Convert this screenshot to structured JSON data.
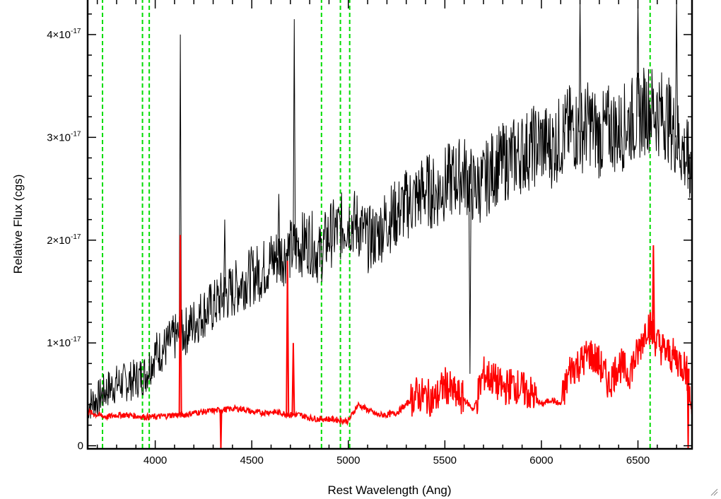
{
  "chart_data": {
    "type": "line",
    "xlabel": "Rest Wavelength (Ang)",
    "ylabel": "Relative Flux (cgs)",
    "xlim": [
      3650,
      6780
    ],
    "ylim": [
      -3e-19,
      4.35e-17
    ],
    "x_ticks": [
      {
        "value": 4000,
        "label": "4000"
      },
      {
        "value": 4500,
        "label": "4500"
      },
      {
        "value": 5000,
        "label": "5000"
      },
      {
        "value": 5500,
        "label": "5500"
      },
      {
        "value": 6000,
        "label": "6000"
      },
      {
        "value": 6500,
        "label": "6500"
      }
    ],
    "x_minor_step": 100,
    "y_ticks": [
      {
        "value": 0,
        "mantissa": "0",
        "exponent": ""
      },
      {
        "value": 1e-17,
        "mantissa": "1×10",
        "exponent": "-17"
      },
      {
        "value": 2e-17,
        "mantissa": "2×10",
        "exponent": "-17"
      },
      {
        "value": 3e-17,
        "mantissa": "3×10",
        "exponent": "-17"
      },
      {
        "value": 4e-17,
        "mantissa": "4×10",
        "exponent": "-17"
      }
    ],
    "y_minor_step": 2e-18,
    "grid": false,
    "vertical_lines": [
      3727,
      3934,
      3969,
      4861,
      4959,
      5007,
      6563
    ],
    "vertical_line_color": "#00dd00",
    "series": [
      {
        "color": "#000000",
        "x": [
          3650,
          3700,
          3750,
          3800,
          3850,
          3900,
          3950,
          4000,
          4050,
          4100,
          4150,
          4200,
          4250,
          4300,
          4350,
          4400,
          4450,
          4500,
          4550,
          4600,
          4650,
          4700,
          4750,
          4800,
          4850,
          4900,
          4950,
          5000,
          5050,
          5100,
          5150,
          5200,
          5250,
          5300,
          5350,
          5400,
          5450,
          5500,
          5550,
          5600,
          5650,
          5700,
          5750,
          5800,
          5850,
          5900,
          5950,
          6000,
          6050,
          6100,
          6150,
          6200,
          6250,
          6300,
          6350,
          6400,
          6450,
          6500,
          6550,
          6600,
          6650,
          6700,
          6750,
          6780
        ],
        "y": [
          4e-18,
          4.5e-18,
          5.5e-18,
          6e-18,
          6.2e-18,
          6.5e-18,
          7e-18,
          9e-18,
          9.5e-18,
          1.05e-17,
          1.1e-17,
          1.2e-17,
          1.3e-17,
          1.35e-17,
          1.45e-17,
          1.5e-17,
          1.6e-17,
          1.65e-17,
          1.7e-17,
          1.8e-17,
          1.85e-17,
          1.9e-17,
          1.95e-17,
          2e-17,
          1.85e-17,
          2.05e-17,
          2.1e-17,
          2.2e-17,
          2.15e-17,
          2e-17,
          2.05e-17,
          2.2e-17,
          2.25e-17,
          2.35e-17,
          2.4e-17,
          2.5e-17,
          2.45e-17,
          2.55e-17,
          2.6e-17,
          2.65e-17,
          2.5e-17,
          2.55e-17,
          2.7e-17,
          2.75e-17,
          2.8e-17,
          2.85e-17,
          2.9e-17,
          2.95e-17,
          2.9e-17,
          3e-17,
          3.1e-17,
          3.05e-17,
          3.15e-17,
          3e-17,
          3.1e-17,
          3.05e-17,
          3.15e-17,
          3.2e-17,
          3.3e-17,
          3.25e-17,
          3.2e-17,
          3e-17,
          2.8e-17,
          2.7e-17
        ],
        "spikes": [
          {
            "x": 4130,
            "y": 4e-17
          },
          {
            "x": 4720,
            "y": 4.15e-17
          },
          {
            "x": 4360,
            "y": 2.2e-17
          },
          {
            "x": 4640,
            "y": 2.45e-17
          },
          {
            "x": 5630,
            "y": 7e-18
          },
          {
            "x": 6200,
            "y": 4.35e-17
          },
          {
            "x": 6500,
            "y": 4.35e-17
          },
          {
            "x": 6700,
            "y": 4.35e-17
          }
        ]
      },
      {
        "color": "#ff0000",
        "x": [
          3650,
          3700,
          3750,
          3800,
          3850,
          3900,
          3950,
          4000,
          4050,
          4100,
          4150,
          4200,
          4250,
          4300,
          4350,
          4400,
          4450,
          4500,
          4550,
          4600,
          4650,
          4700,
          4750,
          4800,
          4850,
          4900,
          4950,
          5000,
          5050,
          5100,
          5150,
          5200,
          5250,
          5300,
          5350,
          5400,
          5450,
          5500,
          5550,
          5600,
          5650,
          5700,
          5750,
          5800,
          5850,
          5900,
          5950,
          6000,
          6050,
          6100,
          6150,
          6200,
          6250,
          6300,
          6350,
          6400,
          6450,
          6500,
          6550,
          6600,
          6650,
          6700,
          6750,
          6780
        ],
        "y": [
          3.3e-18,
          3e-18,
          2.8e-18,
          3e-18,
          3e-18,
          2.9e-18,
          2.8e-18,
          2.8e-18,
          2.9e-18,
          3e-18,
          3e-18,
          3.2e-18,
          3.3e-18,
          3.4e-18,
          3.5e-18,
          3.6e-18,
          3.6e-18,
          3.3e-18,
          3.2e-18,
          3.3e-18,
          3.2e-18,
          3e-18,
          3e-18,
          2.7e-18,
          2.6e-18,
          2.6e-18,
          2.5e-18,
          2.4e-18,
          4e-18,
          3.5e-18,
          3e-18,
          3e-18,
          3.2e-18,
          4e-18,
          5e-18,
          4.8e-18,
          4.5e-18,
          6e-18,
          5e-18,
          4.5e-18,
          3.5e-18,
          7e-18,
          6.5e-18,
          5.5e-18,
          6e-18,
          5.5e-18,
          5e-18,
          4e-18,
          4.5e-18,
          4e-18,
          7.5e-18,
          8e-18,
          9e-18,
          8e-18,
          6e-18,
          8e-18,
          7e-18,
          9e-18,
          1.2e-17,
          1e-17,
          9e-18,
          8.5e-18,
          7.5e-18,
          3e-18
        ],
        "spikes": [
          {
            "x": 4130,
            "y": 2.05e-17
          },
          {
            "x": 4685,
            "y": 1.8e-17
          },
          {
            "x": 4715,
            "y": 1e-17
          },
          {
            "x": 6580,
            "y": 1.95e-17
          }
        ],
        "dips": [
          {
            "x": 4340,
            "y": -3e-19
          },
          {
            "x": 6760,
            "y": -3e-19
          }
        ]
      }
    ]
  }
}
